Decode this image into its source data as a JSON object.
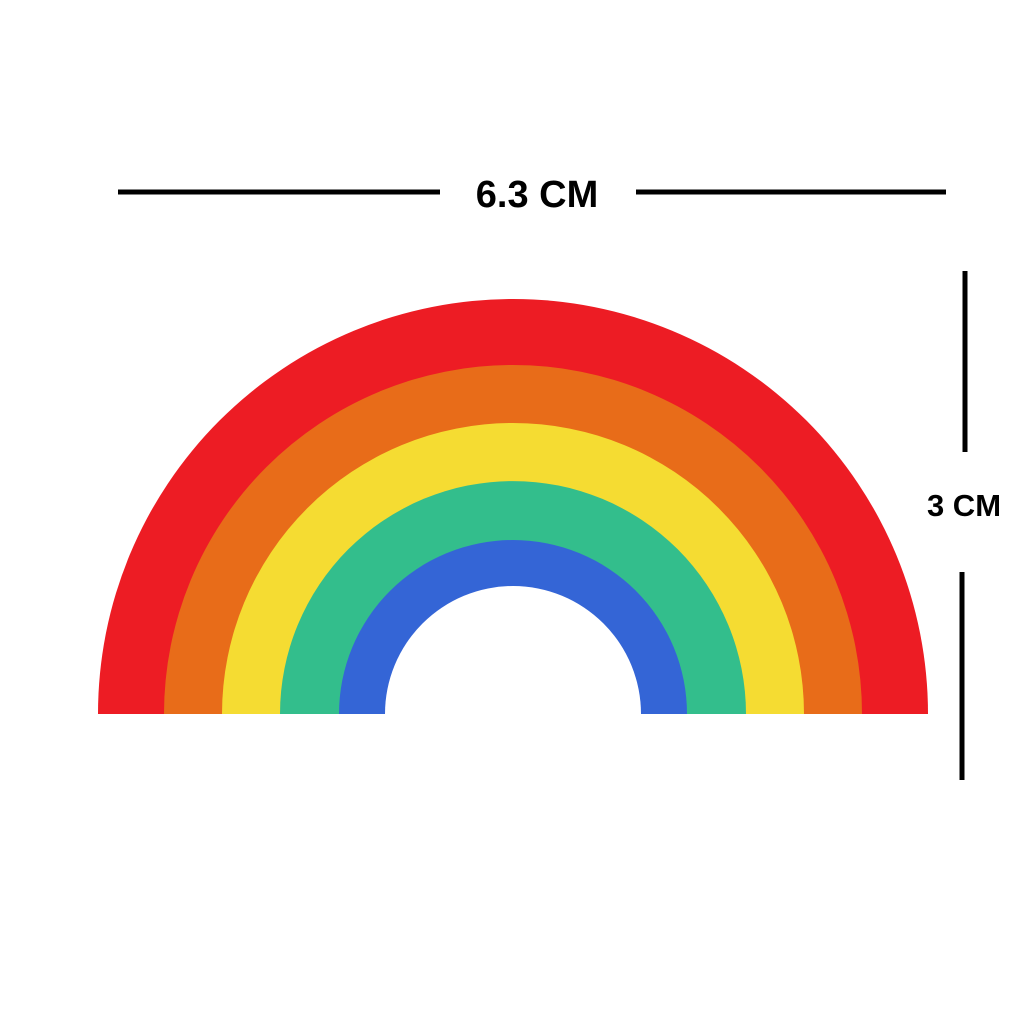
{
  "width_dimension": {
    "label": "6.3 CM"
  },
  "height_dimension": {
    "label": "3 CM"
  },
  "rainbow": {
    "bands": [
      {
        "name": "red",
        "color": "#ED1C24"
      },
      {
        "name": "orange",
        "color": "#E86C19"
      },
      {
        "name": "yellow",
        "color": "#F5DC32"
      },
      {
        "name": "green",
        "color": "#33BE8C"
      },
      {
        "name": "blue",
        "color": "#3465D6"
      }
    ],
    "background": "#FFFFFF"
  },
  "line_color": "#000000"
}
